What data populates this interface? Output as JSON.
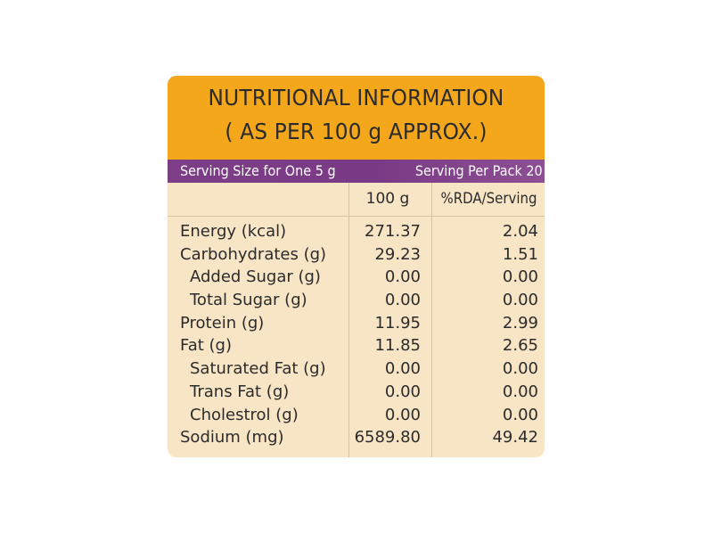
{
  "header": {
    "line1": "NUTRITIONAL INFORMATION",
    "line2": "( AS PER 100 g APPROX.)"
  },
  "serving": {
    "left": "Serving Size for One 5 g",
    "right": "Serving Per Pack 20"
  },
  "columns": {
    "per100": "100 g",
    "rda": "%RDA/Serving"
  },
  "rows": [
    {
      "name": "Energy (kcal)",
      "per100": "271.37",
      "rda": "2.04"
    },
    {
      "name": "Carbohydrates (g)",
      "per100": "29.23",
      "rda": "1.51"
    },
    {
      "name": "Added Sugar (g)",
      "per100": "0.00",
      "rda": "0.00"
    },
    {
      "name": "Total Sugar (g)",
      "per100": "0.00",
      "rda": "0.00"
    },
    {
      "name": "Protein (g)",
      "per100": "11.95",
      "rda": "2.99"
    },
    {
      "name": "Fat (g)",
      "per100": "11.85",
      "rda": "2.65"
    },
    {
      "name": "Saturated Fat (g)",
      "per100": "0.00",
      "rda": "0.00"
    },
    {
      "name": "Trans Fat (g)",
      "per100": "0.00",
      "rda": "0.00"
    },
    {
      "name": "Cholestrol (g)",
      "per100": "0.00",
      "rda": "0.00"
    },
    {
      "name": "Sodium (mg)",
      "per100": "6589.80",
      "rda": "49.42"
    }
  ],
  "colors": {
    "header": "#f5a71b",
    "serving_bar": "#7d3d87",
    "body": "#f7e5c6"
  }
}
